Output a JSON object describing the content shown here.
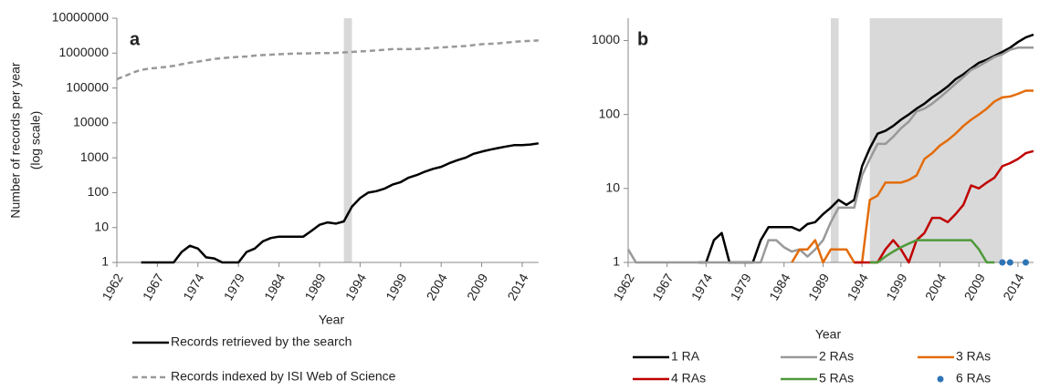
{
  "chart_data": [
    {
      "type": "line",
      "panel_label": "a",
      "log_y": true,
      "ytitle": [
        "Number of records per year",
        "(log scale)"
      ],
      "xtitle": "Year",
      "categories": [
        "1962",
        null,
        null,
        null,
        null,
        "1967",
        null,
        null,
        null,
        null,
        "1974",
        null,
        null,
        null,
        null,
        "1979",
        null,
        null,
        null,
        null,
        "1984",
        null,
        null,
        null,
        null,
        "1989",
        null,
        null,
        null,
        null,
        "1994",
        null,
        null,
        null,
        null,
        "1999",
        null,
        null,
        null,
        null,
        "2004",
        null,
        null,
        null,
        null,
        "2009",
        null,
        null,
        null,
        null,
        "2014",
        null,
        null
      ],
      "ylim": [
        1,
        10000000
      ],
      "yticks": [
        1,
        10,
        100,
        1000,
        10000,
        100000,
        1000000,
        10000000
      ],
      "shaded_spans": [
        [
          28,
          29
        ]
      ],
      "shade_color": "#d9d9d9",
      "series": [
        {
          "name": "Records retrieved by the search",
          "color": "#000000",
          "dash": false,
          "values": [
            null,
            null,
            null,
            1,
            1,
            1,
            1,
            1,
            2,
            3,
            2.5,
            1.4,
            1.3,
            1,
            1,
            1,
            2,
            2.5,
            4,
            5,
            5.5,
            5.5,
            5.5,
            5.5,
            8,
            12,
            14,
            13,
            15,
            40,
            70,
            100,
            110,
            130,
            170,
            200,
            270,
            320,
            400,
            480,
            550,
            700,
            850,
            1000,
            1300,
            1500,
            1700,
            1900,
            2100,
            2300,
            2300,
            2400,
            2600
          ]
        },
        {
          "name": "Records indexed by ISI Web of Science",
          "color": "#999999",
          "dash": true,
          "values": [
            180000,
            220000,
            280000,
            330000,
            360000,
            380000,
            400000,
            430000,
            480000,
            530000,
            570000,
            620000,
            680000,
            720000,
            750000,
            780000,
            800000,
            850000,
            880000,
            900000,
            930000,
            950000,
            970000,
            980000,
            990000,
            1000000,
            1000000,
            1020000,
            1050000,
            1080000,
            1120000,
            1150000,
            1200000,
            1250000,
            1300000,
            1300000,
            1300000,
            1320000,
            1350000,
            1400000,
            1450000,
            1500000,
            1550000,
            1600000,
            1700000,
            1800000,
            1850000,
            1900000,
            2000000,
            2100000,
            2200000,
            2250000,
            2300000
          ]
        }
      ]
    },
    {
      "type": "line",
      "panel_label": "b",
      "log_y": true,
      "xtitle": "Year",
      "categories": [
        "1962",
        null,
        null,
        null,
        null,
        "1967",
        null,
        null,
        null,
        null,
        "1974",
        null,
        null,
        null,
        null,
        "1979",
        null,
        null,
        null,
        null,
        "1984",
        null,
        null,
        null,
        null,
        "1989",
        null,
        null,
        null,
        null,
        "1994",
        null,
        null,
        null,
        null,
        "1999",
        null,
        null,
        null,
        null,
        "2004",
        null,
        null,
        null,
        null,
        "2009",
        null,
        null,
        null,
        null,
        "2014",
        null,
        null
      ],
      "ylim": [
        1,
        2000
      ],
      "yticks": [
        1,
        10,
        100,
        1000
      ],
      "shaded_spans": [
        [
          26,
          27
        ],
        [
          31,
          48
        ]
      ],
      "shade_color": "#d9d9d9",
      "series": [
        {
          "name": "1 RA",
          "color": "#000000",
          "values": [
            null,
            null,
            null,
            null,
            null,
            null,
            null,
            null,
            null,
            1,
            1,
            2,
            2.5,
            1,
            1,
            1,
            1,
            2,
            3,
            3,
            3,
            3,
            2.7,
            3.3,
            3.5,
            4.5,
            5.5,
            7,
            6,
            7,
            20,
            35,
            55,
            60,
            70,
            85,
            100,
            120,
            140,
            170,
            200,
            240,
            300,
            350,
            420,
            500,
            550,
            620,
            700,
            800,
            950,
            1100,
            1200
          ]
        },
        {
          "name": "2 RAs",
          "color": "#999999",
          "values": [
            1.5,
            1,
            1,
            1,
            1,
            1,
            1,
            1,
            1,
            1,
            1,
            1,
            1,
            1,
            1,
            1,
            1,
            1,
            2,
            2,
            1.6,
            1.4,
            1.5,
            1.2,
            1.5,
            2,
            3.5,
            5.5,
            5.5,
            5.5,
            15,
            25,
            40,
            40,
            50,
            65,
            80,
            110,
            120,
            140,
            170,
            210,
            260,
            320,
            400,
            450,
            520,
            600,
            650,
            750,
            800,
            800,
            800
          ]
        },
        {
          "name": "3 RAs",
          "color": "#e36c0a",
          "values": [
            null,
            null,
            null,
            null,
            null,
            null,
            null,
            null,
            null,
            null,
            null,
            null,
            null,
            null,
            null,
            null,
            null,
            null,
            null,
            null,
            null,
            1,
            1.5,
            1.5,
            2,
            1,
            1.5,
            1.5,
            1.5,
            1,
            1,
            7,
            8,
            12,
            12,
            12,
            13,
            15,
            25,
            30,
            38,
            45,
            55,
            70,
            85,
            100,
            120,
            150,
            170,
            175,
            190,
            210,
            210
          ]
        },
        {
          "name": "4 RAs",
          "color": "#c00000",
          "values": [
            null,
            null,
            null,
            null,
            null,
            null,
            null,
            null,
            null,
            null,
            null,
            null,
            null,
            null,
            null,
            null,
            null,
            null,
            null,
            null,
            null,
            null,
            null,
            null,
            null,
            null,
            null,
            null,
            null,
            1,
            1,
            1,
            1,
            1.5,
            2,
            1.5,
            1,
            2,
            2.5,
            4,
            4,
            3.5,
            4.5,
            6,
            11,
            10,
            12,
            14,
            20,
            22,
            25,
            30,
            32
          ]
        },
        {
          "name": "5 RAs",
          "color": "#4f9a3a",
          "values": [
            null,
            null,
            null,
            null,
            null,
            null,
            null,
            null,
            null,
            null,
            null,
            null,
            null,
            null,
            null,
            null,
            null,
            null,
            null,
            null,
            null,
            null,
            null,
            null,
            null,
            null,
            null,
            null,
            null,
            null,
            null,
            1,
            1,
            1.2,
            1.4,
            1.6,
            1.8,
            2,
            2,
            2,
            2,
            2,
            2,
            2,
            2,
            1.5,
            1,
            1,
            null,
            null,
            null,
            null,
            null
          ]
        },
        {
          "name": "6 RAs",
          "color": "#2e75b6",
          "marker": "dot",
          "values": [
            null,
            null,
            null,
            null,
            null,
            null,
            null,
            null,
            null,
            null,
            null,
            null,
            null,
            null,
            null,
            null,
            null,
            null,
            null,
            null,
            null,
            null,
            null,
            null,
            null,
            null,
            null,
            null,
            null,
            null,
            null,
            null,
            null,
            null,
            null,
            null,
            null,
            null,
            null,
            null,
            null,
            null,
            null,
            null,
            null,
            null,
            null,
            null,
            1,
            1,
            null,
            1,
            null
          ]
        }
      ]
    }
  ]
}
